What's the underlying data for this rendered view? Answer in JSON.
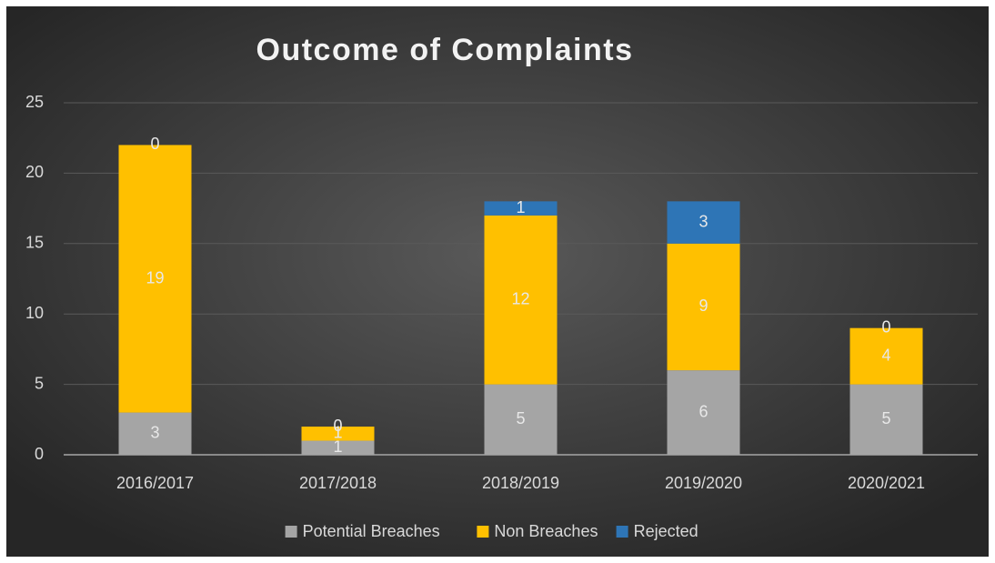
{
  "chart_data": {
    "type": "stacked_bar",
    "title": "Outcome of Complaints",
    "categories": [
      "2016/2017",
      "2017/2018",
      "2018/2019",
      "2019/2020",
      "2020/2021"
    ],
    "series": [
      {
        "name": "Potential Breaches",
        "color": "#a5a5a5",
        "values": [
          3,
          1,
          5,
          6,
          5
        ]
      },
      {
        "name": "Non Breaches",
        "color": "#ffc000",
        "values": [
          19,
          1,
          12,
          9,
          4
        ]
      },
      {
        "name": "Rejected",
        "color": "#2e75b6",
        "values": [
          0,
          0,
          1,
          3,
          0
        ]
      }
    ],
    "ylim": [
      0,
      25
    ],
    "yticks": [
      0,
      5,
      10,
      15,
      20,
      25
    ],
    "grid": true,
    "legend": "bottom"
  }
}
